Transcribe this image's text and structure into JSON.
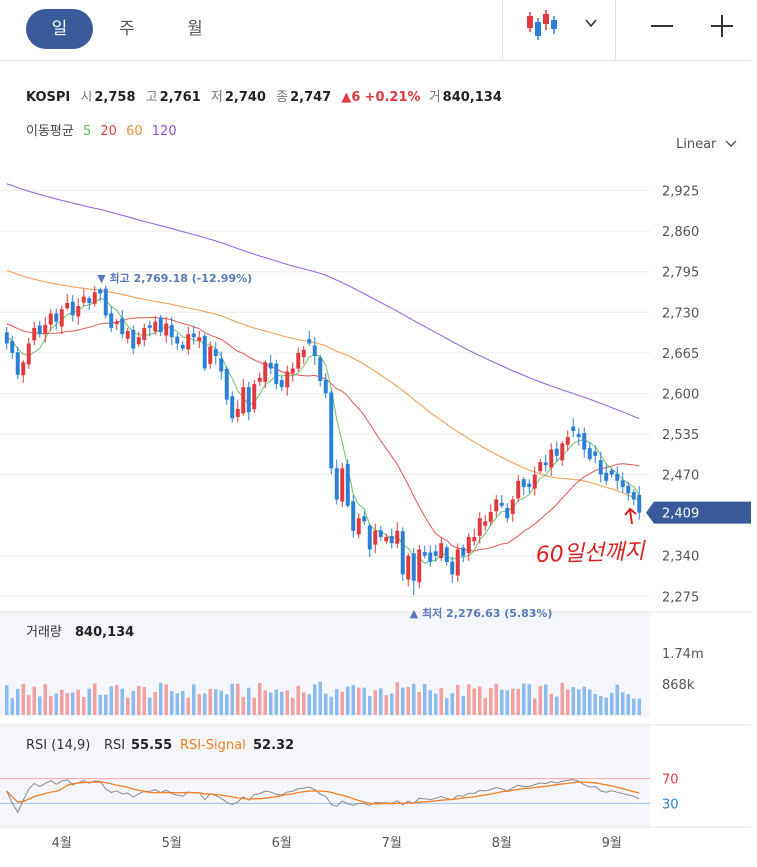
{
  "tabs": [
    {
      "label": "일",
      "active": true
    },
    {
      "label": "주",
      "active": false
    },
    {
      "label": "월",
      "active": false
    }
  ],
  "toolbar": {
    "chart_type_icon": "candlestick-icon",
    "dropdown_icon": "chevron-down-icon",
    "zoom_out_icon": "minus-icon",
    "zoom_in_icon": "plus-icon"
  },
  "quote": {
    "symbol": "KOSPI",
    "open_label": "시",
    "open": "2,758",
    "high_label": "고",
    "high": "2,761",
    "low_label": "저",
    "low": "2,740",
    "close_label": "종",
    "close": "2,747",
    "change_arrow": "▲",
    "change": "6",
    "change_pct": "+0.21%",
    "volume_label": "거",
    "volume": "840,134"
  },
  "moving_average": {
    "label": "이동평균",
    "periods": [
      {
        "label": "5",
        "color": "#5fbf5f"
      },
      {
        "label": "20",
        "color": "#e04848"
      },
      {
        "label": "60",
        "color": "#f09040"
      },
      {
        "label": "120",
        "color": "#8a4fd8"
      }
    ]
  },
  "scale_mode": "Linear",
  "colors": {
    "up": "#e0393e",
    "down": "#2a7fd6",
    "up_volume": "#f2a0a0",
    "down_volume": "#8cbcef",
    "current_tag": "#3a5a9b",
    "annotation": "#dd2222",
    "rsi_line": "#8a8a8a",
    "rsi_signal": "#f08020"
  },
  "chart_data": {
    "type": "candlestick",
    "price_axis": {
      "ticks": [
        "2,925",
        "2,860",
        "2,795",
        "2,730",
        "2,665",
        "2,600",
        "2,535",
        "2,470",
        "2,340",
        "2,275"
      ],
      "tick_values": [
        2925,
        2860,
        2795,
        2730,
        2665,
        2600,
        2535,
        2470,
        2340,
        2275
      ],
      "range": [
        2261,
        2950
      ]
    },
    "current_price_label": "2,409",
    "current_price": 2409,
    "x_axis": {
      "labels": [
        "4월",
        "5월",
        "6월",
        "7월",
        "8월",
        "9월"
      ],
      "positions": [
        10,
        30,
        50,
        70,
        90,
        110
      ],
      "count": 116
    },
    "max_marker": {
      "text": "▼ 최고 2,769.18 (-12.99%)",
      "index": 17,
      "value": 2769.18
    },
    "min_marker": {
      "text": "▲ 최저 2,276.63 (5.83%)",
      "index": 74,
      "value": 2276.63
    },
    "closes": [
      2680,
      2665,
      2630,
      2650,
      2680,
      2705,
      2695,
      2710,
      2728,
      2715,
      2735,
      2745,
      2725,
      2740,
      2755,
      2745,
      2762,
      2760,
      2725,
      2705,
      2715,
      2695,
      2700,
      2672,
      2690,
      2705,
      2705,
      2715,
      2698,
      2712,
      2690,
      2680,
      2672,
      2695,
      2690,
      2690,
      2640,
      2675,
      2660,
      2635,
      2590,
      2560,
      2575,
      2610,
      2570,
      2615,
      2625,
      2650,
      2640,
      2615,
      2610,
      2635,
      2640,
      2665,
      2670,
      2680,
      2660,
      2620,
      2600,
      2480,
      2430,
      2480,
      2420,
      2380,
      2400,
      2395,
      2350,
      2380,
      2370,
      2370,
      2360,
      2380,
      2310,
      2340,
      2300,
      2350,
      2340,
      2330,
      2340,
      2360,
      2330,
      2310,
      2350,
      2340,
      2370,
      2370,
      2400,
      2395,
      2410,
      2430,
      2420,
      2400,
      2430,
      2460,
      2450,
      2450,
      2470,
      2490,
      2485,
      2510,
      2500,
      2520,
      2530,
      2540,
      2530,
      2510,
      2495,
      2500,
      2470,
      2460,
      2470,
      2460,
      2450,
      2440,
      2430,
      2409
    ],
    "volume_axis": {
      "ticks": [
        "1.74m",
        "868k"
      ],
      "tick_values": [
        1740000,
        868000
      ]
    },
    "volume": {
      "title": "거래량",
      "value": "840,134"
    },
    "rsi": {
      "title": "RSI (14,9)",
      "rsi_label": "RSI",
      "rsi_value": "55.55",
      "signal_label": "RSI-Signal",
      "signal_value": "52.32",
      "ticks": [
        "70",
        "30"
      ],
      "tick_values": [
        70,
        30
      ],
      "range": [
        0,
        100
      ]
    }
  },
  "annotation": {
    "text": "60일선깨지"
  }
}
